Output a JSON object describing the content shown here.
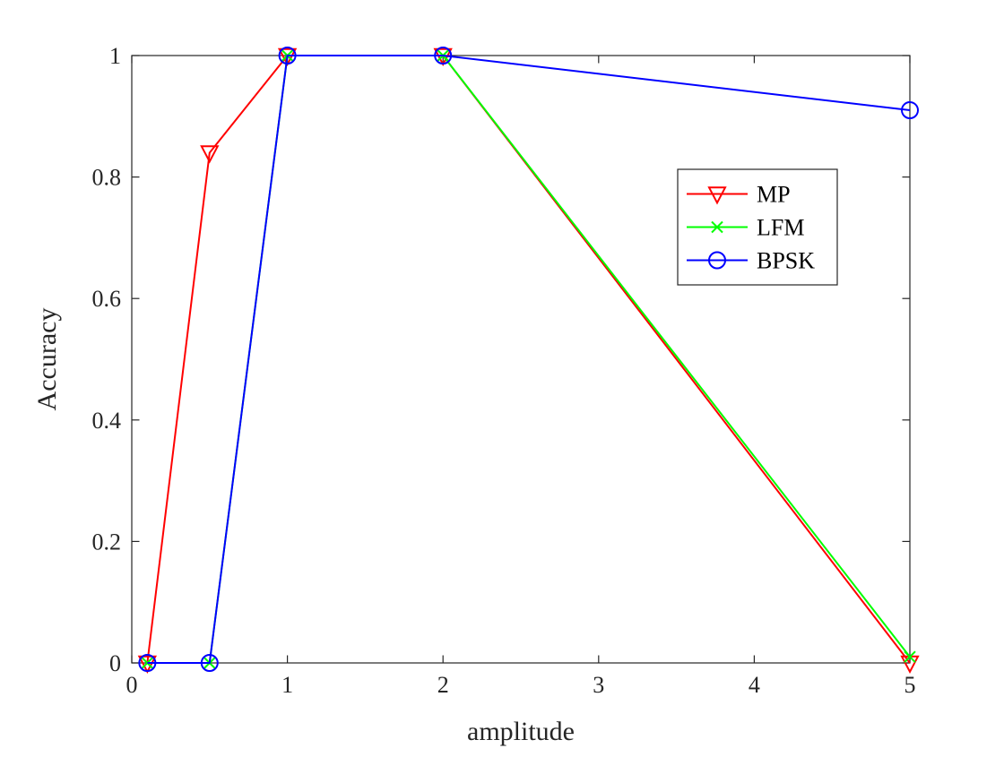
{
  "chart_data": {
    "type": "line",
    "xlabel": "amplitude",
    "ylabel": "Accuracy",
    "x_categories": [
      "0.1",
      "0.5",
      "1",
      "2",
      "5"
    ],
    "xticks": [
      "0",
      "1",
      "2",
      "3",
      "4",
      "5"
    ],
    "yticks": [
      "0",
      "0.2",
      "0.4",
      "0.6",
      "0.8",
      "1"
    ],
    "xlim": [
      0,
      5
    ],
    "ylim": [
      0,
      1
    ],
    "grid": false,
    "legend_position": "top-right",
    "series": [
      {
        "name": "MP",
        "color": "#ff0000",
        "marker": "triangle-down",
        "values": [
          0,
          0.84,
          1,
          1,
          0
        ]
      },
      {
        "name": "LFM",
        "color": "#00ff00",
        "marker": "x",
        "values": [
          0,
          0,
          1,
          1,
          0.01
        ]
      },
      {
        "name": "BPSK",
        "color": "#0000ff",
        "marker": "circle",
        "values": [
          0,
          0,
          1,
          1,
          0.91
        ]
      }
    ]
  }
}
